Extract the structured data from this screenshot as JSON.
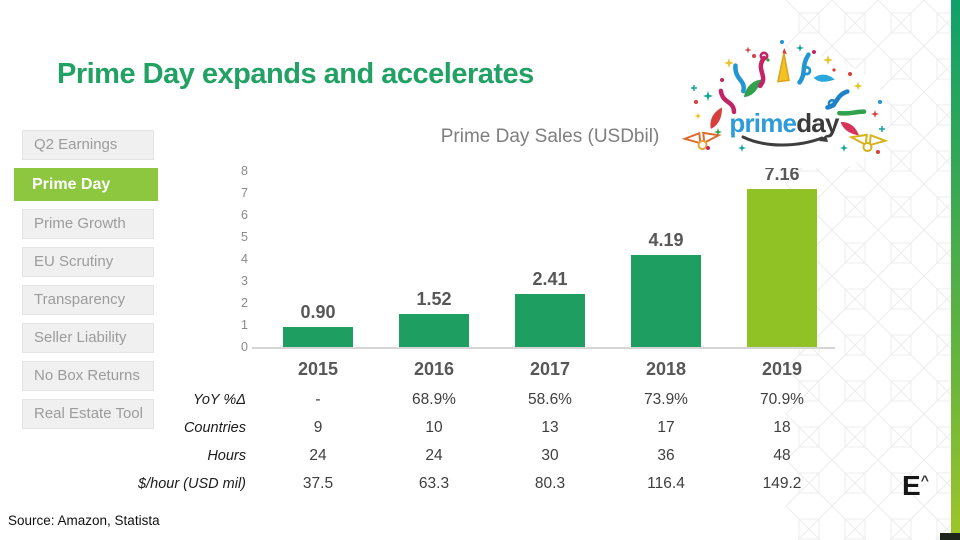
{
  "header": {
    "title": "Prime Day expands and accelerates"
  },
  "sidebar": {
    "items": [
      {
        "label": "Q2 Earnings",
        "active": false
      },
      {
        "label": "Prime Day",
        "active": true
      },
      {
        "label": "Prime Growth",
        "active": false
      },
      {
        "label": "EU Scrutiny",
        "active": false
      },
      {
        "label": "Transparency",
        "active": false
      },
      {
        "label": "Seller Liability",
        "active": false
      },
      {
        "label": "No Box Returns",
        "active": false
      },
      {
        "label": "Real Estate Tool",
        "active": false
      }
    ]
  },
  "chart_data": {
    "type": "bar",
    "title": "Prime Day Sales (USDbil)",
    "categories": [
      "2015",
      "2016",
      "2017",
      "2018",
      "2019"
    ],
    "values": [
      0.9,
      1.52,
      2.41,
      4.19,
      7.16
    ],
    "value_labels": [
      "0.90",
      "1.52",
      "2.41",
      "4.19",
      "7.16"
    ],
    "xlabel": "",
    "ylabel": "",
    "ylim": [
      0,
      8
    ],
    "yticks": [
      0,
      1,
      2,
      3,
      4,
      5,
      6,
      7,
      8
    ],
    "grid": false,
    "legend_position": "none",
    "bar_color": "#1F9E62",
    "highlight_index": 4,
    "highlight_color": "#90C226"
  },
  "table": {
    "rows": [
      {
        "label": "YoY %Δ",
        "values": [
          "-",
          "68.9%",
          "58.6%",
          "73.9%",
          "70.9%"
        ]
      },
      {
        "label": "Countries",
        "values": [
          "9",
          "10",
          "13",
          "17",
          "18"
        ]
      },
      {
        "label": "Hours",
        "values": [
          "24",
          "24",
          "30",
          "36",
          "48"
        ]
      },
      {
        "label": "$/hour (USD mil)",
        "values": [
          "37.5",
          "63.3",
          "80.3",
          "116.4",
          "149.2"
        ]
      }
    ]
  },
  "prime_logo": {
    "prime": "prime",
    "day": "day"
  },
  "footer": {
    "source": "Source: Amazon, Statista"
  },
  "brand_logo": {
    "letter": "E",
    "caret": "^"
  },
  "colors": {
    "title_green": "#21A164",
    "bar_green": "#1F9E62",
    "highlight_lime": "#90C226",
    "sidebar_active": "#8DC63F",
    "sidebar_inactive_bg": "#F0F0F0",
    "prime_blue": "#2E9CD8",
    "axis_gray": "#8A8A8A",
    "label_gray": "#575757"
  }
}
